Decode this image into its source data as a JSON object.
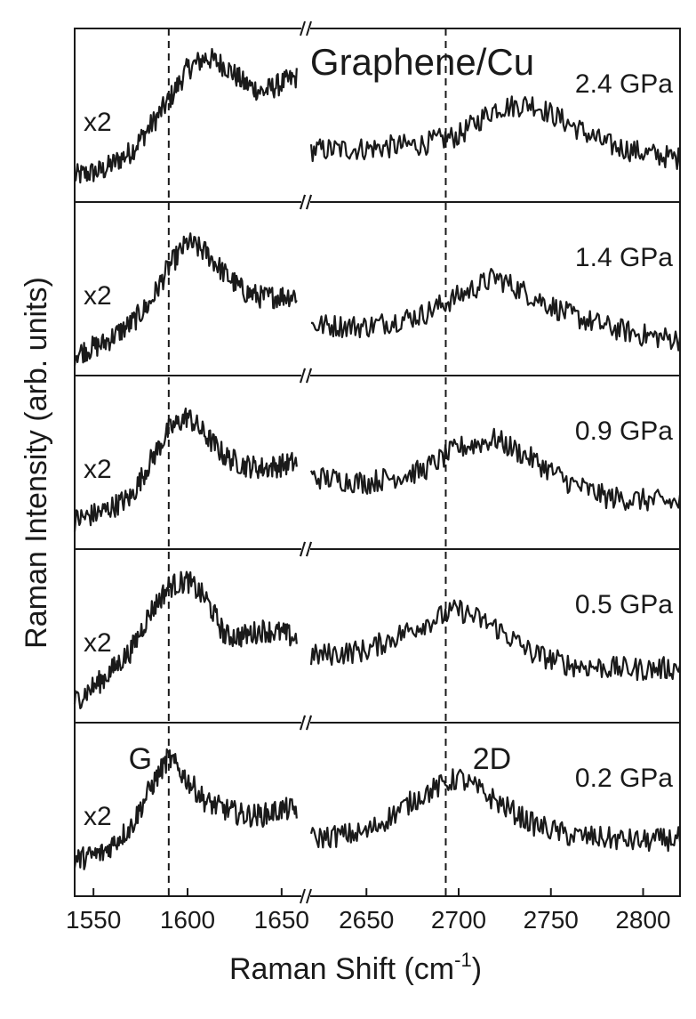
{
  "chart_data": {
    "type": "line",
    "title": "Graphene/Cu",
    "xlabel": "Raman Shift (cm",
    "xlabel_sup": "-1",
    "xlabel_end": ")",
    "ylabel": "Raman Intensity (arb. units)",
    "x_break": true,
    "x_segments": [
      {
        "xlim": [
          1540,
          1660
        ],
        "ticks": [
          1550,
          1600,
          1650
        ]
      },
      {
        "xlim": [
          2620,
          2820
        ],
        "ticks": [
          2650,
          2700,
          2750,
          2800
        ]
      }
    ],
    "reference_lines": [
      {
        "x": 1590,
        "label": "G"
      },
      {
        "x": 2693,
        "label": "2D"
      }
    ],
    "multiplier_label": "x2",
    "grid": false,
    "panels": [
      {
        "name": "2.4 GPa",
        "segments": [
          {
            "x": [
              1540,
              1555,
              1570,
              1580,
              1590,
              1600,
              1610,
              1620,
              1630,
              1640,
              1650,
              1658
            ],
            "y": [
              0.08,
              0.12,
              0.25,
              0.42,
              0.6,
              0.82,
              0.9,
              0.84,
              0.72,
              0.66,
              0.72,
              0.76
            ]
          },
          {
            "x": [
              2620,
              2650,
              2680,
              2700,
              2720,
              2740,
              2760,
              2780,
              2800,
              2820
            ],
            "y": [
              0.26,
              0.27,
              0.3,
              0.36,
              0.55,
              0.58,
              0.44,
              0.3,
              0.24,
              0.2
            ]
          }
        ]
      },
      {
        "name": "1.4 GPa",
        "segments": [
          {
            "x": [
              1540,
              1555,
              1570,
              1580,
              1590,
              1600,
              1610,
              1620,
              1630,
              1640,
              1650,
              1658
            ],
            "y": [
              0.05,
              0.12,
              0.26,
              0.4,
              0.65,
              0.82,
              0.75,
              0.6,
              0.48,
              0.44,
              0.45,
              0.46
            ]
          },
          {
            "x": [
              2620,
              2650,
              2680,
              2700,
              2720,
              2740,
              2760,
              2780,
              2800,
              2820
            ],
            "y": [
              0.25,
              0.24,
              0.32,
              0.45,
              0.58,
              0.45,
              0.32,
              0.24,
              0.18,
              0.15
            ]
          }
        ]
      },
      {
        "name": "0.9 GPa",
        "segments": [
          {
            "x": [
              1540,
              1555,
              1570,
              1580,
              1590,
              1600,
              1610,
              1620,
              1630,
              1640,
              1650,
              1658
            ],
            "y": [
              0.1,
              0.16,
              0.26,
              0.5,
              0.72,
              0.82,
              0.68,
              0.54,
              0.48,
              0.46,
              0.48,
              0.5
            ]
          },
          {
            "x": [
              2620,
              2650,
              2680,
              2700,
              2720,
              2740,
              2760,
              2780,
              2800,
              2820
            ],
            "y": [
              0.4,
              0.36,
              0.44,
              0.6,
              0.66,
              0.52,
              0.36,
              0.26,
              0.24,
              0.22
            ]
          }
        ]
      },
      {
        "name": "0.5 GPa",
        "segments": [
          {
            "x": [
              1540,
              1555,
              1570,
              1580,
              1590,
              1600,
              1610,
              1620,
              1630,
              1640,
              1650,
              1658
            ],
            "y": [
              0.05,
              0.2,
              0.4,
              0.66,
              0.84,
              0.88,
              0.75,
              0.5,
              0.5,
              0.54,
              0.52,
              0.48
            ]
          },
          {
            "x": [
              2620,
              2650,
              2680,
              2700,
              2720,
              2740,
              2760,
              2780,
              2800,
              2820
            ],
            "y": [
              0.36,
              0.4,
              0.58,
              0.68,
              0.56,
              0.38,
              0.3,
              0.28,
              0.27,
              0.28
            ]
          }
        ]
      },
      {
        "name": "0.2 GPa",
        "segments": [
          {
            "x": [
              1540,
              1555,
              1570,
              1580,
              1590,
              1600,
              1610,
              1620,
              1630,
              1640,
              1650,
              1658
            ],
            "y": [
              0.15,
              0.2,
              0.38,
              0.64,
              0.86,
              0.7,
              0.55,
              0.5,
              0.46,
              0.46,
              0.5,
              0.5
            ]
          },
          {
            "x": [
              2620,
              2650,
              2680,
              2700,
              2720,
              2740,
              2760,
              2780,
              2800,
              2820
            ],
            "y": [
              0.3,
              0.34,
              0.6,
              0.72,
              0.56,
              0.4,
              0.32,
              0.3,
              0.28,
              0.3
            ]
          }
        ]
      }
    ]
  }
}
